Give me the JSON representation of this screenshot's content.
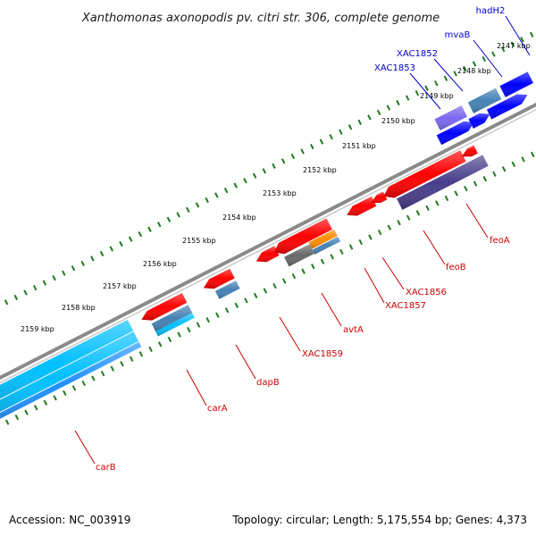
{
  "title": "Xanthomonas axonopodis pv. citri str. 306, complete genome",
  "footer": {
    "accession": "Accession: NC_003919",
    "summary": "Topology: circular; Length: 5,175,554 bp; Genes: 4,373"
  },
  "colors": {
    "backbone": "#8a8a8a",
    "tick": "#1f7a1f",
    "forward_label": "#0000cc",
    "reverse_label": "#cc0000"
  },
  "ticks": [
    {
      "label": "2147 kbp",
      "kbp": 2147
    },
    {
      "label": "2148 kbp",
      "kbp": 2148
    },
    {
      "label": "2149 kbp",
      "kbp": 2149
    },
    {
      "label": "2150 kbp",
      "kbp": 2150
    },
    {
      "label": "2151 kbp",
      "kbp": 2151
    },
    {
      "label": "2152 kbp",
      "kbp": 2152
    },
    {
      "label": "2153 kbp",
      "kbp": 2153
    },
    {
      "label": "2154 kbp",
      "kbp": 2154
    },
    {
      "label": "2155 kbp",
      "kbp": 2155
    },
    {
      "label": "2156 kbp",
      "kbp": 2156
    },
    {
      "label": "2157 kbp",
      "kbp": 2157
    },
    {
      "label": "2158 kbp",
      "kbp": 2158
    },
    {
      "label": "2159 kbp",
      "kbp": 2159
    }
  ],
  "genes_forward": [
    {
      "name": "hadH2",
      "color": "#0000ff"
    },
    {
      "name": "mvaB",
      "color": "#0000ff"
    },
    {
      "name": "XAC1852",
      "color": "#4682b4"
    },
    {
      "name": "XAC1853",
      "color": "#7b68ee"
    }
  ],
  "genes_reverse": [
    {
      "name": "feoA",
      "color": "#ff0000"
    },
    {
      "name": "feoB",
      "color": "#483d8b"
    },
    {
      "name": "XAC1856",
      "color": "#ff0000"
    },
    {
      "name": "XAC1857",
      "color": "#ff0000"
    },
    {
      "name": "avtA",
      "color": "#ff8c00"
    },
    {
      "name": "XAC1859",
      "color": "#696969"
    },
    {
      "name": "dapB",
      "color": "#4682b4"
    },
    {
      "name": "carA",
      "color": "#00bfff"
    },
    {
      "name": "carB",
      "color": "#00bfff"
    }
  ]
}
